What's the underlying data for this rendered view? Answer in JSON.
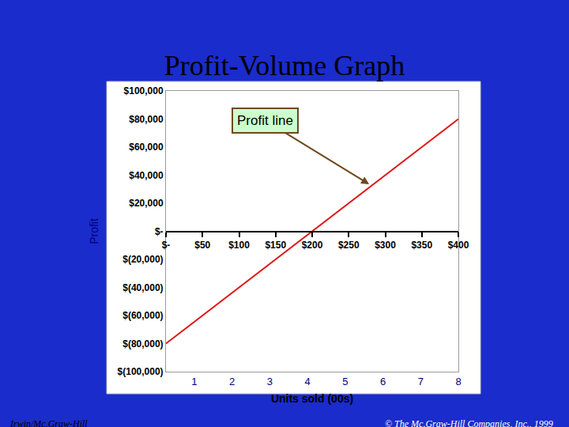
{
  "chart_data": {
    "type": "line",
    "title": "Profit-Volume Graph",
    "x_label": "Units sold (00s)",
    "y_label": "Profit",
    "x": [
      0,
      50,
      100,
      150,
      200,
      250,
      300,
      350,
      400
    ],
    "values": [
      -80000,
      -60000,
      -40000,
      -20000,
      0,
      20000,
      40000,
      60000,
      80000
    ],
    "color": "#e01818",
    "xlim": [
      0,
      400
    ],
    "xticks": [
      {
        "value": 0,
        "label": "$-"
      },
      {
        "value": 50,
        "label": "$50"
      },
      {
        "value": 100,
        "label": "$100"
      },
      {
        "value": 150,
        "label": "$150"
      },
      {
        "value": 200,
        "label": "$200"
      },
      {
        "value": 250,
        "label": "$250"
      },
      {
        "value": 300,
        "label": "$300"
      },
      {
        "value": 350,
        "label": "$350"
      },
      {
        "value": 400,
        "label": "$400"
      }
    ],
    "x2lim": [
      0.25,
      8
    ],
    "x2ticks": [
      1,
      2,
      3,
      4,
      5,
      6,
      7,
      8
    ],
    "ylim": [
      -100000,
      100000
    ],
    "yticks": [
      {
        "value": 100000,
        "label": "$100,000"
      },
      {
        "value": 80000,
        "label": "$80,000"
      },
      {
        "value": 60000,
        "label": "$60,000"
      },
      {
        "value": 40000,
        "label": "$40,000"
      },
      {
        "value": 20000,
        "label": "$20,000"
      },
      {
        "value": 0,
        "label": "$-"
      },
      {
        "value": -20000,
        "label": "$(20,000)"
      },
      {
        "value": -40000,
        "label": "$(40,000)"
      },
      {
        "value": -60000,
        "label": "$(60,000)"
      },
      {
        "value": -80000,
        "label": "$(80,000)"
      },
      {
        "value": -100000,
        "label": "$(100,000)"
      }
    ],
    "grid": false,
    "annotations": [
      {
        "text": "Profit line",
        "x": 278,
        "y": 33500
      }
    ],
    "footer": [
      "Irwin/Mc.Graw-Hill",
      "© The Mc.Graw-Hill Companies, Inc., 1999"
    ]
  }
}
